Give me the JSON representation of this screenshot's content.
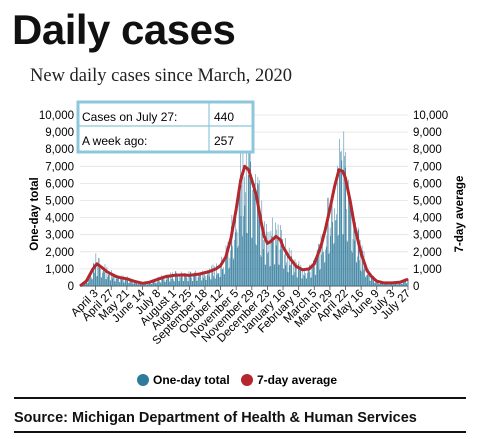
{
  "title": "Daily cases",
  "subtitle": "New daily cases since March, 2020",
  "source": "Source:  Michigan Department of Health & Human Services",
  "colors": {
    "bars": "#2f7a9c",
    "line": "#b3272d",
    "box_border": "#8cc7dc"
  },
  "info_box": {
    "rows": [
      {
        "label": "Cases on July 27:",
        "value": "440"
      },
      {
        "label": "A week ago:",
        "value": "257"
      }
    ]
  },
  "chart_data": {
    "type": "bar",
    "ylabel_left": "One-day total",
    "ylabel_right": "7-day average",
    "ylim": [
      0,
      10000
    ],
    "y_ticks_left": [
      "0",
      "1,000",
      "2,000",
      "3,000",
      "4,000",
      "5,000",
      "6,000",
      "7,000",
      "8,000",
      "9,000",
      "10,000"
    ],
    "y_ticks_right": [
      "0",
      "1,000",
      "2,000",
      "3,000",
      "4,000",
      "5,000",
      "6,000",
      "7,000",
      "8,000",
      "9,000",
      "10,000"
    ],
    "x_range": [
      "2020-03-10",
      "2021-07-27"
    ],
    "x_ticks": [
      {
        "date": "2020-04-03",
        "label": "April 3"
      },
      {
        "date": "2020-04-27",
        "label": "April 27"
      },
      {
        "date": "2020-05-21",
        "label": "May 21"
      },
      {
        "date": "2020-06-14",
        "label": "June 14"
      },
      {
        "date": "2020-07-08",
        "label": "July 8"
      },
      {
        "date": "2020-08-01",
        "label": "August 1"
      },
      {
        "date": "2020-08-25",
        "label": "August 25"
      },
      {
        "date": "2020-09-18",
        "label": "September 18"
      },
      {
        "date": "2020-10-12",
        "label": "October 12"
      },
      {
        "date": "2020-11-05",
        "label": "November 5"
      },
      {
        "date": "2020-11-29",
        "label": "November 29"
      },
      {
        "date": "2020-12-23",
        "label": "December 23"
      },
      {
        "date": "2021-01-16",
        "label": "January 16"
      },
      {
        "date": "2021-02-09",
        "label": "February 9"
      },
      {
        "date": "2021-03-05",
        "label": "March 5"
      },
      {
        "date": "2021-03-29",
        "label": "March 29"
      },
      {
        "date": "2021-04-22",
        "label": "April 22"
      },
      {
        "date": "2021-05-16",
        "label": "May 16"
      },
      {
        "date": "2021-06-09",
        "label": "June 9"
      },
      {
        "date": "2021-07-03",
        "label": "July 3"
      },
      {
        "date": "2021-07-27",
        "label": "July 27"
      }
    ],
    "series": [
      {
        "name": "7-day average",
        "type": "line",
        "points": [
          [
            "2020-03-10",
            0
          ],
          [
            "2020-03-20",
            300
          ],
          [
            "2020-03-30",
            1000
          ],
          [
            "2020-04-05",
            1300
          ],
          [
            "2020-04-12",
            1100
          ],
          [
            "2020-04-20",
            850
          ],
          [
            "2020-04-27",
            700
          ],
          [
            "2020-05-05",
            550
          ],
          [
            "2020-05-12",
            480
          ],
          [
            "2020-05-21",
            420
          ],
          [
            "2020-06-01",
            280
          ],
          [
            "2020-06-14",
            160
          ],
          [
            "2020-06-25",
            220
          ],
          [
            "2020-07-08",
            400
          ],
          [
            "2020-07-20",
            550
          ],
          [
            "2020-08-01",
            620
          ],
          [
            "2020-08-15",
            650
          ],
          [
            "2020-08-25",
            620
          ],
          [
            "2020-09-10",
            700
          ],
          [
            "2020-09-25",
            850
          ],
          [
            "2020-10-05",
            1000
          ],
          [
            "2020-10-12",
            1200
          ],
          [
            "2020-10-20",
            1700
          ],
          [
            "2020-10-28",
            2800
          ],
          [
            "2020-11-05",
            4500
          ],
          [
            "2020-11-12",
            6200
          ],
          [
            "2020-11-18",
            7000
          ],
          [
            "2020-11-24",
            6800
          ],
          [
            "2020-11-29",
            6200
          ],
          [
            "2020-12-06",
            5300
          ],
          [
            "2020-12-13",
            3800
          ],
          [
            "2020-12-18",
            2900
          ],
          [
            "2020-12-23",
            2500
          ],
          [
            "2020-12-28",
            2600
          ],
          [
            "2021-01-05",
            2900
          ],
          [
            "2021-01-12",
            2700
          ],
          [
            "2021-01-16",
            2300
          ],
          [
            "2021-01-25",
            1700
          ],
          [
            "2021-02-05",
            1150
          ],
          [
            "2021-02-15",
            950
          ],
          [
            "2021-02-25",
            1000
          ],
          [
            "2021-03-05",
            1300
          ],
          [
            "2021-03-15",
            2300
          ],
          [
            "2021-03-22",
            3300
          ],
          [
            "2021-03-29",
            4500
          ],
          [
            "2021-04-05",
            5800
          ],
          [
            "2021-04-12",
            6800
          ],
          [
            "2021-04-18",
            6700
          ],
          [
            "2021-04-22",
            6300
          ],
          [
            "2021-04-29",
            5000
          ],
          [
            "2021-05-06",
            3500
          ],
          [
            "2021-05-16",
            1900
          ],
          [
            "2021-05-25",
            900
          ],
          [
            "2021-06-01",
            550
          ],
          [
            "2021-06-09",
            280
          ],
          [
            "2021-06-20",
            180
          ],
          [
            "2021-07-03",
            180
          ],
          [
            "2021-07-15",
            230
          ],
          [
            "2021-07-27",
            400
          ]
        ]
      },
      {
        "name": "One-day total",
        "type": "bar",
        "note": "daily values",
        "peaks": [
          [
            "2020-04-03",
            1900
          ],
          [
            "2020-11-15",
            9800
          ],
          [
            "2020-11-20",
            8500
          ],
          [
            "2021-04-12",
            8600
          ],
          [
            "2021-04-15",
            7900
          ],
          [
            "2020-12-30",
            4000
          ],
          [
            "2021-01-08",
            3600
          ]
        ]
      }
    ],
    "legend": [
      {
        "name": "One-day total",
        "color": "#2f7a9c"
      },
      {
        "name": "7-day average",
        "color": "#b3272d"
      }
    ],
    "legend_position": "bottom"
  }
}
